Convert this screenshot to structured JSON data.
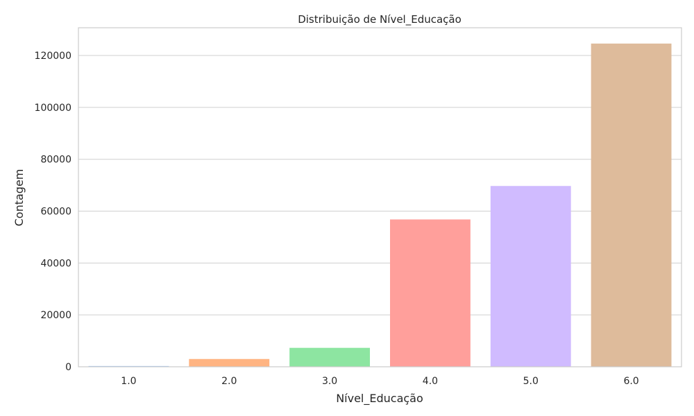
{
  "chart_data": {
    "type": "bar",
    "title": "Distribuição de Nível_Educação",
    "xlabel": "Nível_Educação",
    "ylabel": "Contagem",
    "categories": [
      "1.0",
      "2.0",
      "3.0",
      "4.0",
      "5.0",
      "6.0"
    ],
    "values": [
      300,
      3000,
      7300,
      56800,
      69700,
      124600
    ],
    "colors": [
      "#a1c9f4",
      "#ffb482",
      "#8de5a1",
      "#ff9f9b",
      "#d0bbff",
      "#debb9b"
    ],
    "ylim": [
      0,
      130700
    ],
    "yticks": [
      0,
      20000,
      40000,
      60000,
      80000,
      100000,
      120000
    ],
    "grid": true,
    "legend": "none"
  }
}
